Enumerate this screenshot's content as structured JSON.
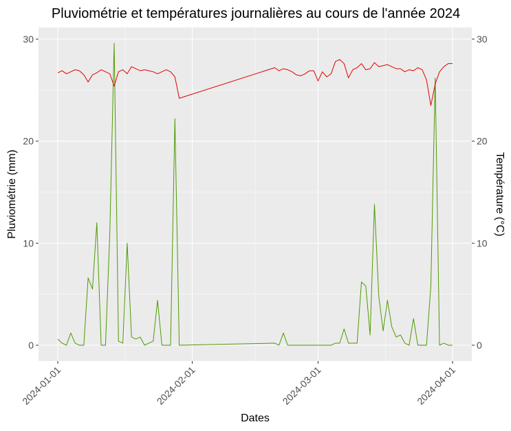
{
  "chart_data": {
    "type": "line",
    "title": "Pluviométrie et températures journalières au cours de l'année 2024",
    "xlabel": "Dates",
    "ylabel": "Pluviométrie (mm)",
    "y2label": "Température (°C)",
    "xlim": [
      "2024-01-01",
      "2024-04-01"
    ],
    "ylim": [
      0,
      30
    ],
    "y2lim": [
      0,
      30
    ],
    "x_ticks": [
      "2024-01-01",
      "2024-02-01",
      "2024-03-01",
      "2024-04-01"
    ],
    "y_ticks": [
      0,
      10,
      20,
      30
    ],
    "grid": true,
    "colors": {
      "rain": "#4d9a00",
      "temperature": "#e00000",
      "panel": "#ebebeb"
    },
    "series": [
      {
        "key": "rain",
        "x": [
          "2024-01-01",
          "2024-01-02",
          "2024-01-03",
          "2024-01-04",
          "2024-01-05",
          "2024-01-06",
          "2024-01-07",
          "2024-01-08",
          "2024-01-09",
          "2024-01-10",
          "2024-01-11",
          "2024-01-12",
          "2024-01-13",
          "2024-01-14",
          "2024-01-15",
          "2024-01-16",
          "2024-01-17",
          "2024-01-18",
          "2024-01-19",
          "2024-01-20",
          "2024-01-21",
          "2024-01-22",
          "2024-01-23",
          "2024-01-24",
          "2024-01-25",
          "2024-01-26",
          "2024-01-27",
          "2024-01-28",
          "2024-01-29",
          "2024-02-20",
          "2024-02-21",
          "2024-02-22",
          "2024-02-23",
          "2024-02-24",
          "2024-02-25",
          "2024-02-26",
          "2024-02-27",
          "2024-02-28",
          "2024-02-29",
          "2024-03-01",
          "2024-03-02",
          "2024-03-03",
          "2024-03-04",
          "2024-03-05",
          "2024-03-06",
          "2024-03-07",
          "2024-03-08",
          "2024-03-09",
          "2024-03-10",
          "2024-03-11",
          "2024-03-12",
          "2024-03-13",
          "2024-03-14",
          "2024-03-15",
          "2024-03-16",
          "2024-03-17",
          "2024-03-18",
          "2024-03-19",
          "2024-03-20",
          "2024-03-21",
          "2024-03-22",
          "2024-03-23",
          "2024-03-24",
          "2024-03-25",
          "2024-03-26",
          "2024-03-27",
          "2024-03-28",
          "2024-03-29",
          "2024-03-30",
          "2024-03-31",
          "2024-04-01"
        ],
        "y": [
          0.6,
          0.2,
          0.0,
          1.2,
          0.2,
          0.0,
          0.0,
          6.6,
          5.5,
          12.0,
          0.0,
          0.0,
          11.0,
          29.6,
          0.4,
          0.2,
          10.0,
          0.8,
          0.6,
          0.8,
          0.0,
          0.2,
          0.4,
          4.4,
          0.0,
          0.0,
          0.0,
          22.2,
          0.0,
          0.2,
          0.0,
          1.2,
          0.0,
          0.0,
          0.0,
          0.0,
          0.0,
          0.0,
          0.0,
          0.0,
          0.0,
          0.0,
          0.0,
          0.2,
          0.2,
          1.6,
          0.2,
          0.2,
          0.2,
          6.2,
          5.8,
          1.0,
          13.8,
          4.8,
          1.4,
          4.4,
          1.8,
          0.8,
          1.0,
          0.2,
          0.0,
          2.6,
          0.0,
          0.0,
          0.0,
          5.8,
          26.2,
          0.0,
          0.2,
          0.0,
          0.0
        ]
      },
      {
        "key": "temperature",
        "x": [
          "2024-01-01",
          "2024-01-02",
          "2024-01-03",
          "2024-01-04",
          "2024-01-05",
          "2024-01-06",
          "2024-01-07",
          "2024-01-08",
          "2024-01-09",
          "2024-01-10",
          "2024-01-11",
          "2024-01-12",
          "2024-01-13",
          "2024-01-14",
          "2024-01-15",
          "2024-01-16",
          "2024-01-17",
          "2024-01-18",
          "2024-01-19",
          "2024-01-20",
          "2024-01-21",
          "2024-01-22",
          "2024-01-23",
          "2024-01-24",
          "2024-01-25",
          "2024-01-26",
          "2024-01-27",
          "2024-01-28",
          "2024-01-29",
          "2024-02-20",
          "2024-02-21",
          "2024-02-22",
          "2024-02-23",
          "2024-02-24",
          "2024-02-25",
          "2024-02-26",
          "2024-02-27",
          "2024-02-28",
          "2024-02-29",
          "2024-03-01",
          "2024-03-02",
          "2024-03-03",
          "2024-03-04",
          "2024-03-05",
          "2024-03-06",
          "2024-03-07",
          "2024-03-08",
          "2024-03-09",
          "2024-03-10",
          "2024-03-11",
          "2024-03-12",
          "2024-03-13",
          "2024-03-14",
          "2024-03-15",
          "2024-03-16",
          "2024-03-17",
          "2024-03-18",
          "2024-03-19",
          "2024-03-20",
          "2024-03-21",
          "2024-03-22",
          "2024-03-23",
          "2024-03-24",
          "2024-03-25",
          "2024-03-26",
          "2024-03-27",
          "2024-03-28",
          "2024-03-29",
          "2024-03-30",
          "2024-03-31",
          "2024-04-01"
        ],
        "y": [
          26.7,
          26.9,
          26.6,
          26.8,
          27.0,
          26.9,
          26.5,
          25.8,
          26.5,
          26.7,
          27.0,
          26.8,
          26.6,
          25.4,
          26.8,
          27.0,
          26.6,
          27.3,
          27.1,
          26.9,
          27.0,
          26.9,
          26.8,
          26.6,
          26.8,
          27.0,
          26.8,
          26.3,
          24.2,
          27.2,
          26.9,
          27.1,
          27.0,
          26.8,
          26.5,
          26.4,
          26.6,
          26.9,
          26.9,
          25.9,
          26.8,
          26.3,
          26.6,
          27.8,
          28.0,
          27.6,
          26.2,
          27.0,
          27.2,
          27.6,
          27.0,
          27.1,
          27.7,
          27.3,
          27.4,
          27.5,
          27.3,
          27.1,
          27.1,
          26.8,
          27.0,
          26.9,
          27.2,
          27.0,
          26.0,
          23.5,
          25.6,
          26.8,
          27.3,
          27.6,
          27.6
        ]
      }
    ]
  }
}
